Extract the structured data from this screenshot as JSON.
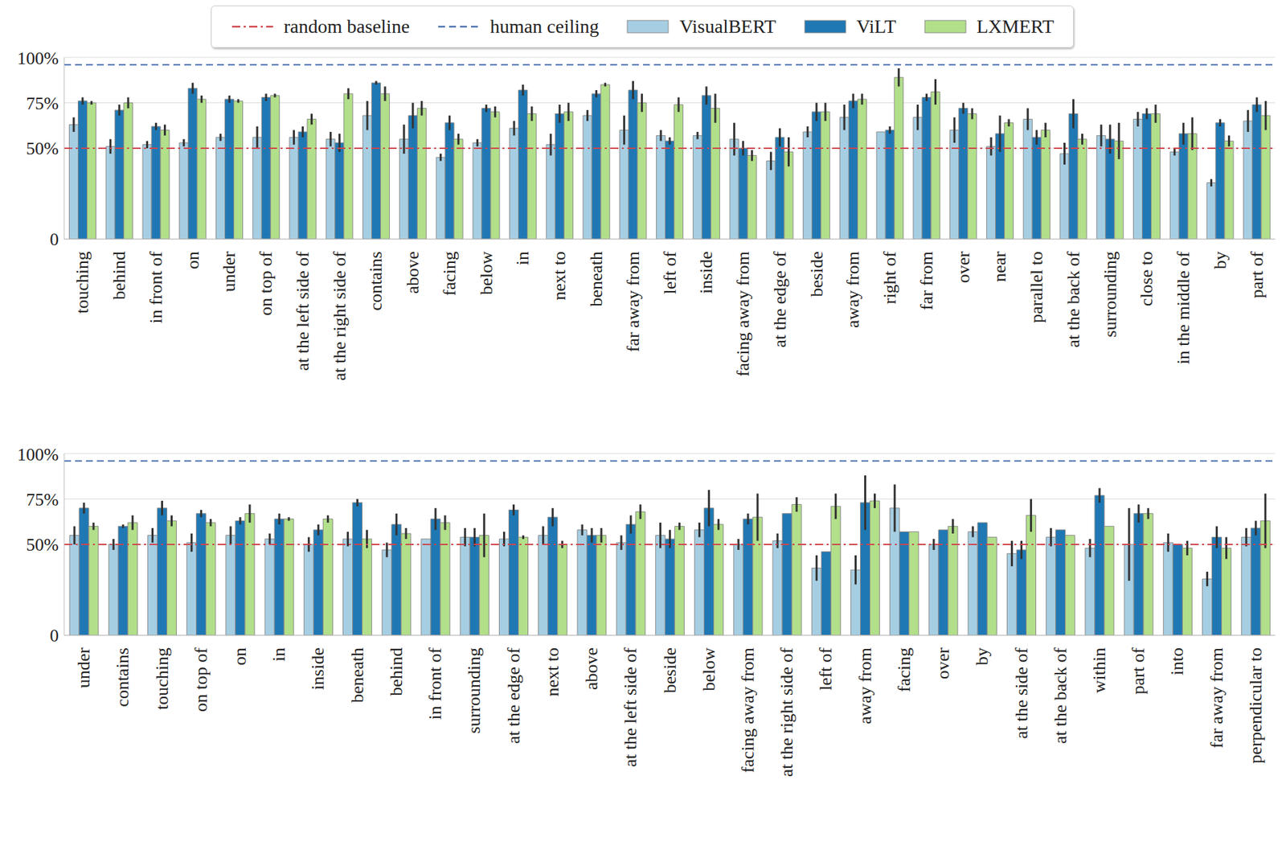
{
  "chart_data": [
    {
      "type": "bar",
      "legend": "top",
      "grid": true,
      "categories": [
        "touching",
        "behind",
        "in front of",
        "on",
        "under",
        "on top of",
        "at the left side of",
        "at the right side of",
        "contains",
        "above",
        "facing",
        "below",
        "in",
        "next to",
        "beneath",
        "far away from",
        "left of",
        "inside",
        "facing away from",
        "at the edge of",
        "beside",
        "away from",
        "right of",
        "far from",
        "over",
        "near",
        "parallel to",
        "at the back of",
        "surrounding",
        "close to",
        "in the middle of",
        "by",
        "part of"
      ],
      "series": [
        {
          "name": "VisualBERT",
          "color": "#a6cee3",
          "values": [
            63,
            51,
            52,
            53,
            56,
            56,
            56,
            55,
            68,
            55,
            45,
            53,
            61,
            52,
            68,
            60,
            57,
            57,
            55,
            43,
            59,
            67,
            59,
            67,
            60,
            51,
            66,
            47,
            57,
            66,
            48,
            31,
            65
          ],
          "errors": [
            4,
            4,
            2,
            2,
            2,
            6,
            4,
            4,
            8,
            8,
            2,
            2,
            4,
            6,
            3,
            8,
            3,
            2,
            9,
            5,
            3,
            7,
            0,
            7,
            7,
            5,
            6,
            6,
            6,
            4,
            2,
            2,
            6
          ]
        },
        {
          "name": "ViLT",
          "color": "#1f78b4",
          "values": [
            76,
            71,
            62,
            83,
            77,
            78,
            59,
            53,
            86,
            68,
            64,
            72,
            82,
            69,
            80,
            82,
            54,
            79,
            50,
            56,
            70,
            76,
            60,
            78,
            72,
            58,
            56,
            69,
            55,
            69,
            58,
            64,
            74
          ],
          "errors": [
            2,
            3,
            2,
            3,
            2,
            2,
            3,
            5,
            1,
            7,
            4,
            2,
            3,
            5,
            2,
            5,
            2,
            5,
            4,
            5,
            5,
            4,
            2,
            2,
            3,
            10,
            4,
            8,
            8,
            3,
            6,
            2,
            4
          ]
        },
        {
          "name": "LXMERT",
          "color": "#b2df8a",
          "values": [
            75,
            75,
            60,
            77,
            76,
            79,
            66,
            80,
            80,
            72,
            55,
            70,
            69,
            70,
            85,
            75,
            74,
            72,
            46,
            48,
            70,
            77,
            89,
            81,
            69,
            64,
            60,
            55,
            54,
            69,
            58,
            54,
            68
          ],
          "errors": [
            1,
            3,
            3,
            2,
            1,
            1,
            3,
            3,
            4,
            4,
            3,
            3,
            4,
            5,
            1,
            5,
            4,
            8,
            3,
            8,
            5,
            3,
            5,
            7,
            3,
            2,
            4,
            3,
            10,
            5,
            9,
            3,
            8
          ]
        }
      ],
      "reference_lines": [
        {
          "name": "random baseline",
          "value": 50,
          "color": "#d0454c",
          "line_style": "dashdot"
        },
        {
          "name": "human ceiling",
          "value": 96,
          "color": "#4c72b0",
          "line_style": "dashed"
        }
      ],
      "ylim": [
        0,
        100
      ],
      "yticks": [
        0,
        {
          "value": 50,
          "label": "50%"
        },
        {
          "value": 75,
          "label": "75%"
        },
        {
          "value": 100,
          "label": "100%"
        }
      ]
    },
    {
      "type": "bar",
      "grid": true,
      "categories": [
        "under",
        "contains",
        "touching",
        "on top of",
        "on",
        "in",
        "inside",
        "beneath",
        "behind",
        "in front of",
        "surrounding",
        "at the edge of",
        "next to",
        "above",
        "at the left side of",
        "beside",
        "below",
        "facing away from",
        "at the right side of",
        "left of",
        "away from",
        "facing",
        "over",
        "by",
        "at the side of",
        "at the back of",
        "within",
        "part of",
        "into",
        "far away from",
        "perpendicular to"
      ],
      "series": [
        {
          "name": "VisualBERT",
          "color": "#a6cee3",
          "values": [
            55,
            50,
            55,
            51,
            55,
            53,
            50,
            53,
            47,
            53,
            54,
            53,
            55,
            58,
            51,
            55,
            58,
            50,
            52,
            37,
            36,
            70,
            50,
            57,
            45,
            54,
            48,
            50,
            51,
            31,
            54
          ],
          "errors": [
            5,
            3,
            4,
            5,
            5,
            3,
            4,
            4,
            4,
            0,
            5,
            4,
            5,
            3,
            4,
            7,
            4,
            3,
            4,
            7,
            8,
            13,
            3,
            3,
            7,
            5,
            5,
            20,
            5,
            4,
            5
          ]
        },
        {
          "name": "ViLT",
          "color": "#1f78b4",
          "values": [
            70,
            60,
            70,
            67,
            63,
            64,
            58,
            73,
            61,
            64,
            54,
            69,
            65,
            55,
            61,
            53,
            70,
            64,
            67,
            46,
            73,
            57,
            58,
            62,
            47,
            58,
            77,
            67,
            50,
            54,
            59
          ],
          "errors": [
            3,
            1,
            4,
            2,
            2,
            3,
            3,
            2,
            6,
            6,
            5,
            3,
            5,
            4,
            5,
            5,
            10,
            3,
            0,
            0,
            15,
            0,
            0,
            0,
            5,
            0,
            4,
            5,
            0,
            6,
            4
          ]
        },
        {
          "name": "LXMERT",
          "color": "#b2df8a",
          "values": [
            60,
            62,
            63,
            62,
            67,
            64,
            64,
            53,
            56,
            62,
            55,
            54,
            50,
            55,
            68,
            60,
            61,
            65,
            72,
            71,
            74,
            57,
            60,
            54,
            66,
            55,
            60,
            67,
            48,
            48,
            63
          ],
          "errors": [
            2,
            4,
            3,
            2,
            5,
            1,
            2,
            5,
            3,
            4,
            12,
            1,
            2,
            4,
            4,
            2,
            3,
            13,
            4,
            7,
            4,
            0,
            4,
            0,
            9,
            0,
            0,
            3,
            4,
            6,
            15
          ]
        }
      ],
      "reference_lines": [
        {
          "name": "random baseline",
          "value": 50,
          "color": "#d0454c",
          "line_style": "dashdot"
        },
        {
          "name": "human ceiling",
          "value": 96,
          "color": "#4c72b0",
          "line_style": "dashed"
        }
      ],
      "ylim": [
        0,
        100
      ],
      "yticks": [
        0,
        {
          "value": 50,
          "label": "50%"
        },
        {
          "value": 75,
          "label": "75%"
        },
        {
          "value": 100,
          "label": "100%"
        }
      ]
    }
  ]
}
